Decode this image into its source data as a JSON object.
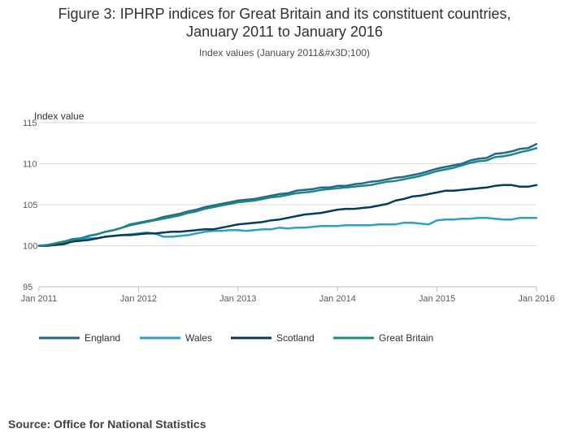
{
  "title_line1": "Figure 3: IPHRP indices for Great Britain and its constituent countries,",
  "title_line2": "January 2011 to January 2016",
  "subtitle": "Index values (January 2011&#x3D;100)",
  "source": "Source: Office for National Statistics",
  "colors": {
    "England": "#27668f",
    "Wales": "#2e9ecb",
    "Scotland": "#073b5a",
    "Great Britain": "#1a8a7e",
    "gridline": "#d9d9d9",
    "axis": "#bebebe",
    "text": "#323132"
  },
  "chart_data": {
    "type": "line",
    "ylabel": "Index value",
    "xlabel": "",
    "ylim": [
      95,
      115
    ],
    "yticks": [
      95,
      100,
      105,
      110,
      115
    ],
    "xlim": [
      0,
      60
    ],
    "xtick_positions": [
      0,
      12,
      24,
      36,
      48,
      60
    ],
    "xtick_labels": [
      "Jan 2011",
      "Jan 2012",
      "Jan 2013",
      "Jan 2014",
      "Jan 2015",
      "Jan 2016"
    ],
    "grid": true,
    "legend_position": "bottom",
    "series": [
      {
        "name": "England",
        "values": [
          100.0,
          100.0,
          100.3,
          100.5,
          100.8,
          100.9,
          101.2,
          101.4,
          101.7,
          101.9,
          102.2,
          102.6,
          102.8,
          103.0,
          103.2,
          103.5,
          103.7,
          103.9,
          104.2,
          104.4,
          104.7,
          104.9,
          105.1,
          105.3,
          105.5,
          105.6,
          105.7,
          105.9,
          106.1,
          106.3,
          106.4,
          106.7,
          106.8,
          106.9,
          107.1,
          107.1,
          107.3,
          107.3,
          107.5,
          107.6,
          107.8,
          107.9,
          108.1,
          108.3,
          108.4,
          108.6,
          108.8,
          109.1,
          109.4,
          109.6,
          109.8,
          110.0,
          110.4,
          110.6,
          110.7,
          111.2,
          111.3,
          111.5,
          111.8,
          111.9,
          112.4
        ]
      },
      {
        "name": "Wales",
        "values": [
          100.0,
          100.0,
          100.3,
          100.3,
          100.6,
          100.7,
          100.9,
          100.9,
          101.1,
          101.2,
          101.3,
          101.4,
          101.5,
          101.6,
          101.5,
          101.1,
          101.1,
          101.2,
          101.3,
          101.5,
          101.7,
          101.8,
          101.8,
          101.9,
          101.9,
          101.8,
          101.9,
          102.0,
          102.0,
          102.2,
          102.1,
          102.2,
          102.2,
          102.3,
          102.4,
          102.4,
          102.4,
          102.5,
          102.5,
          102.5,
          102.5,
          102.6,
          102.6,
          102.6,
          102.8,
          102.8,
          102.7,
          102.6,
          103.1,
          103.2,
          103.2,
          103.3,
          103.3,
          103.4,
          103.4,
          103.3,
          103.2,
          103.2,
          103.4,
          103.4,
          103.4
        ]
      },
      {
        "name": "Scotland",
        "values": [
          100.0,
          100.0,
          100.1,
          100.2,
          100.5,
          100.6,
          100.7,
          100.9,
          101.1,
          101.2,
          101.3,
          101.3,
          101.4,
          101.5,
          101.5,
          101.6,
          101.7,
          101.7,
          101.8,
          101.9,
          102.0,
          102.0,
          102.2,
          102.4,
          102.6,
          102.7,
          102.8,
          102.9,
          103.1,
          103.2,
          103.4,
          103.6,
          103.8,
          103.9,
          104.0,
          104.2,
          104.4,
          104.5,
          104.5,
          104.6,
          104.7,
          104.9,
          105.1,
          105.5,
          105.7,
          106.0,
          106.1,
          106.3,
          106.5,
          106.7,
          106.7,
          106.8,
          106.9,
          107.0,
          107.1,
          107.3,
          107.4,
          107.4,
          107.2,
          107.2,
          107.4
        ]
      },
      {
        "name": "Great Britain",
        "values": [
          100.0,
          100.1,
          100.3,
          100.5,
          100.7,
          100.9,
          101.2,
          101.4,
          101.7,
          101.9,
          102.2,
          102.5,
          102.7,
          102.9,
          103.1,
          103.3,
          103.5,
          103.7,
          104.0,
          104.2,
          104.5,
          104.7,
          104.9,
          105.1,
          105.3,
          105.4,
          105.5,
          105.7,
          105.9,
          106.0,
          106.2,
          106.4,
          106.5,
          106.6,
          106.8,
          106.9,
          107.0,
          107.1,
          107.2,
          107.3,
          107.4,
          107.6,
          107.8,
          107.9,
          108.1,
          108.3,
          108.5,
          108.8,
          109.1,
          109.3,
          109.5,
          109.8,
          110.1,
          110.3,
          110.4,
          110.8,
          110.9,
          111.1,
          111.4,
          111.6,
          111.9
        ]
      }
    ]
  }
}
